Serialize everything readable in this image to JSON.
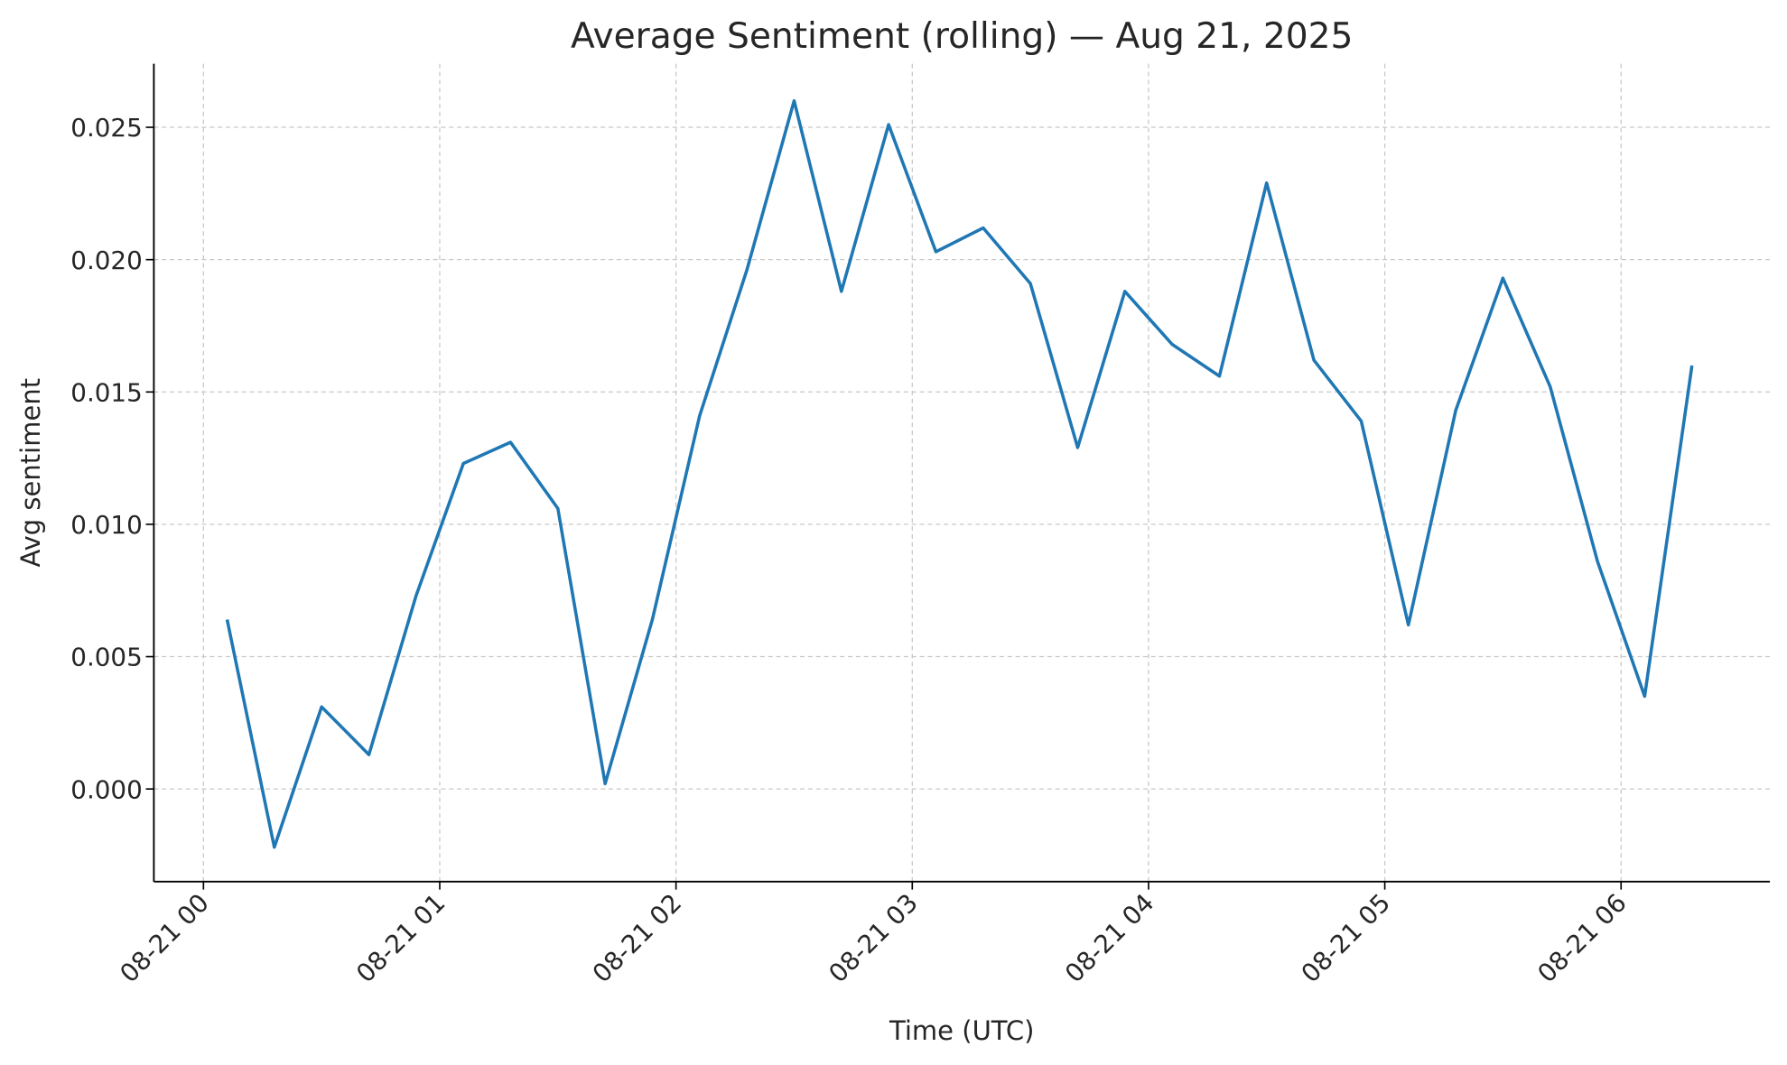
{
  "chart_data": {
    "type": "line",
    "title": "Average Sentiment (rolling) — Aug 21, 2025",
    "xlabel": "Time (UTC)",
    "ylabel": "Avg sentiment",
    "x_unit": "hours since 2025-08-21 00:00 UTC",
    "xlim": [
      -0.21,
      6.63
    ],
    "ylim": [
      -0.0035,
      0.0274
    ],
    "grid": true,
    "line_color": "#1f77b4",
    "x_ticks": [
      {
        "value": 0,
        "label": "08-21 00"
      },
      {
        "value": 1,
        "label": "08-21 01"
      },
      {
        "value": 2,
        "label": "08-21 02"
      },
      {
        "value": 3,
        "label": "08-21 03"
      },
      {
        "value": 4,
        "label": "08-21 04"
      },
      {
        "value": 5,
        "label": "08-21 05"
      },
      {
        "value": 6,
        "label": "08-21 06"
      }
    ],
    "y_ticks": [
      {
        "value": 0.0,
        "label": "0.000"
      },
      {
        "value": 0.005,
        "label": "0.005"
      },
      {
        "value": 0.01,
        "label": "0.010"
      },
      {
        "value": 0.015,
        "label": "0.015"
      },
      {
        "value": 0.02,
        "label": "0.020"
      },
      {
        "value": 0.025,
        "label": "0.025"
      }
    ],
    "series": [
      {
        "name": "Avg sentiment",
        "x": [
          0.1,
          0.3,
          0.5,
          0.7,
          0.9,
          1.1,
          1.3,
          1.5,
          1.7,
          1.9,
          2.1,
          2.3,
          2.5,
          2.7,
          2.9,
          3.1,
          3.3,
          3.5,
          3.7,
          3.9,
          4.1,
          4.3,
          4.5,
          4.7,
          4.9,
          5.1,
          5.3,
          5.5,
          5.7,
          5.9,
          6.1,
          6.3
        ],
        "values": [
          0.0064,
          -0.0022,
          0.0031,
          0.0013,
          0.0073,
          0.0123,
          0.0131,
          0.0106,
          0.0002,
          0.0064,
          0.0141,
          0.0196,
          0.026,
          0.0188,
          0.0251,
          0.0203,
          0.0212,
          0.0191,
          0.0129,
          0.0188,
          0.0168,
          0.0156,
          0.0229,
          0.0162,
          0.0139,
          0.0062,
          0.0143,
          0.0193,
          0.0152,
          0.0086,
          0.0035,
          0.016
        ]
      }
    ]
  }
}
